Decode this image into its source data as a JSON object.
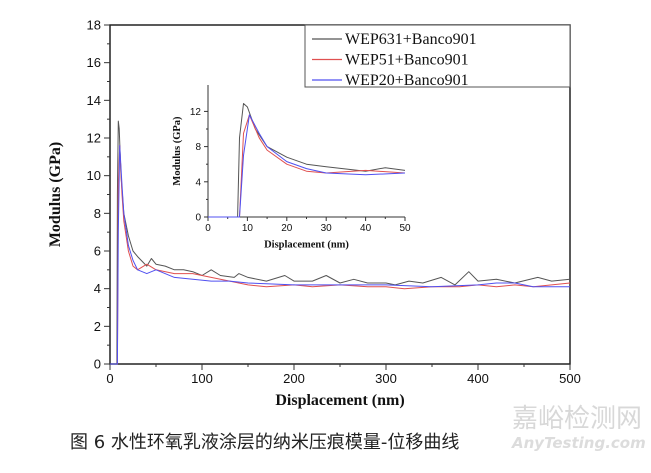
{
  "chart_data": [
    {
      "type": "line",
      "xlabel": "Displacement (nm)",
      "ylabel": "Modulus (GPa)",
      "xlim": [
        0,
        500
      ],
      "ylim": [
        0,
        18
      ],
      "xticks": [
        0,
        100,
        200,
        300,
        400,
        500
      ],
      "yticks": [
        0,
        2,
        4,
        6,
        8,
        10,
        12,
        14,
        16,
        18
      ],
      "grid": false,
      "legend_position": "top-right",
      "series": [
        {
          "name": "WEP631+Banco901",
          "color": "#555555",
          "x": [
            0,
            7.5,
            8,
            9,
            10,
            12,
            15,
            20,
            25,
            30,
            40,
            45,
            50,
            60,
            70,
            80,
            90,
            100,
            110,
            120,
            135,
            140,
            150,
            170,
            190,
            200,
            220,
            235,
            250,
            265,
            280,
            300,
            310,
            325,
            340,
            360,
            375,
            390,
            400,
            420,
            440,
            465,
            480,
            500
          ],
          "y": [
            0,
            0,
            9,
            12.9,
            12.5,
            10,
            8,
            6.8,
            6,
            5.7,
            5.2,
            5.6,
            5.3,
            5.2,
            5.0,
            5.0,
            4.9,
            4.7,
            5.0,
            4.7,
            4.6,
            4.8,
            4.6,
            4.4,
            4.7,
            4.4,
            4.4,
            4.7,
            4.3,
            4.5,
            4.3,
            4.3,
            4.2,
            4.4,
            4.3,
            4.6,
            4.2,
            4.9,
            4.4,
            4.5,
            4.3,
            4.6,
            4.4,
            4.5
          ]
        },
        {
          "name": "WEP51+Banco901",
          "color": "#e05050",
          "x": [
            0,
            8,
            9,
            10.5,
            13,
            15,
            20,
            25,
            30,
            40,
            50,
            70,
            90,
            110,
            130,
            150,
            170,
            200,
            220,
            250,
            280,
            300,
            320,
            350,
            380,
            400,
            420,
            440,
            460,
            480,
            500
          ],
          "y": [
            0,
            0,
            9.5,
            11.6,
            9,
            7.6,
            6.0,
            5.2,
            5.0,
            5.3,
            5.0,
            4.8,
            4.8,
            4.6,
            4.4,
            4.2,
            4.1,
            4.2,
            4.1,
            4.2,
            4.1,
            4.1,
            4.0,
            4.1,
            4.1,
            4.2,
            4.1,
            4.2,
            4.1,
            4.2,
            4.3
          ]
        },
        {
          "name": "WEP20+Banco901",
          "color": "#5050f0",
          "x": [
            0,
            8,
            9,
            10.5,
            13,
            15,
            20,
            25,
            30,
            40,
            50,
            70,
            90,
            110,
            130,
            150,
            200,
            250,
            300,
            350,
            400,
            420,
            440,
            460,
            500
          ],
          "y": [
            0,
            0,
            7,
            11.6,
            9.5,
            8,
            6.3,
            5.5,
            5.0,
            4.8,
            5.0,
            4.6,
            4.5,
            4.4,
            4.4,
            4.3,
            4.2,
            4.2,
            4.2,
            4.1,
            4.2,
            4.3,
            4.3,
            4.1,
            4.1
          ]
        }
      ]
    },
    {
      "type": "line",
      "role": "inset",
      "xlabel": "Displacement (nm)",
      "ylabel": "Modulus (GPa)",
      "xlim": [
        0,
        50
      ],
      "ylim": [
        0,
        15
      ],
      "xticks": [
        0,
        10,
        20,
        30,
        40,
        50
      ],
      "yticks": [
        0,
        4,
        8,
        12
      ],
      "grid": false,
      "series_ref": "same three series as main chart, zoomed to 0-50 nm"
    }
  ],
  "caption": "图 6  水性环氧乳液涂层的纳米压痕模量-位移曲线",
  "watermark": {
    "cn": "嘉峪检测网",
    "en": "AnyTesting.com"
  }
}
